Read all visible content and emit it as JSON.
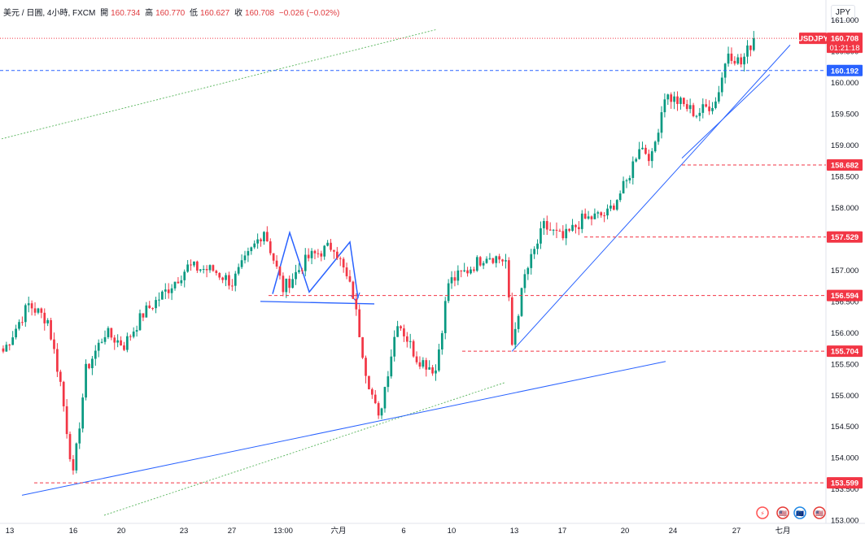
{
  "legend": {
    "symbol": "美元 / 日圓, 4小時, FXCM",
    "open_label": "開",
    "open": "160.734",
    "high_label": "高",
    "high": "160.770",
    "low_label": "低",
    "low": "160.627",
    "close_label": "收",
    "close": "160.708",
    "change": "−0.026 (−0.02%)"
  },
  "currency_button": "JPY",
  "chart_data": {
    "type": "candlestick",
    "title": "USDJPY",
    "ylim": [
      152.95,
      161.32
    ],
    "y_ticks": [
      "161.000",
      "160.500",
      "160.000",
      "159.500",
      "159.000",
      "158.500",
      "158.000",
      "157.500",
      "157.000",
      "156.500",
      "156.000",
      "155.500",
      "155.000",
      "154.500",
      "154.000",
      "153.500",
      "153.000"
    ],
    "x_ticks": [
      "13",
      "16",
      "20",
      "23",
      "27",
      "13:00",
      "六月",
      "6",
      "10",
      "13",
      "17",
      "20",
      "24",
      "27",
      "七月"
    ],
    "price_tag": {
      "symbol": "USDJPY",
      "value": "160.708",
      "countdown": "01:21:18",
      "price": 160.708
    },
    "levels": [
      {
        "label": "160.192",
        "price": 160.192,
        "color": "#2962ff"
      },
      {
        "label": "158.682",
        "price": 158.682,
        "color": "#f23645"
      },
      {
        "label": "157.529",
        "price": 157.529,
        "color": "#f23645"
      },
      {
        "label": "156.594",
        "price": 156.594,
        "color": "#f23645"
      },
      {
        "label": "155.704",
        "price": 155.704,
        "color": "#f23645"
      },
      {
        "label": "153.599",
        "price": 153.599,
        "color": "#f23645"
      }
    ],
    "series": [
      {
        "name": "USDJPY 4H close",
        "points": [
          {
            "bar": 0,
            "price": 155.7
          },
          {
            "bar": 8,
            "price": 156.45
          },
          {
            "bar": 14,
            "price": 156.2
          },
          {
            "bar": 18,
            "price": 155.2
          },
          {
            "bar": 22,
            "price": 153.7
          },
          {
            "bar": 26,
            "price": 155.4
          },
          {
            "bar": 32,
            "price": 156.0
          },
          {
            "bar": 38,
            "price": 155.8
          },
          {
            "bar": 44,
            "price": 156.3
          },
          {
            "bar": 50,
            "price": 156.6
          },
          {
            "bar": 58,
            "price": 157.05
          },
          {
            "bar": 66,
            "price": 157.0
          },
          {
            "bar": 72,
            "price": 156.8
          },
          {
            "bar": 82,
            "price": 157.65
          },
          {
            "bar": 88,
            "price": 156.7
          },
          {
            "bar": 96,
            "price": 157.2
          },
          {
            "bar": 104,
            "price": 157.4
          },
          {
            "bar": 110,
            "price": 156.6
          },
          {
            "bar": 114,
            "price": 155.4
          },
          {
            "bar": 118,
            "price": 154.6
          },
          {
            "bar": 124,
            "price": 156.2
          },
          {
            "bar": 130,
            "price": 155.6
          },
          {
            "bar": 136,
            "price": 155.4
          },
          {
            "bar": 140,
            "price": 156.8
          },
          {
            "bar": 146,
            "price": 157.0
          },
          {
            "bar": 152,
            "price": 157.25
          },
          {
            "bar": 158,
            "price": 157.15
          },
          {
            "bar": 160,
            "price": 155.8
          },
          {
            "bar": 164,
            "price": 156.9
          },
          {
            "bar": 170,
            "price": 157.7
          },
          {
            "bar": 176,
            "price": 157.5
          },
          {
            "bar": 182,
            "price": 157.8
          },
          {
            "bar": 190,
            "price": 157.9
          },
          {
            "bar": 196,
            "price": 158.4
          },
          {
            "bar": 200,
            "price": 159.0
          },
          {
            "bar": 204,
            "price": 158.8
          },
          {
            "bar": 208,
            "price": 159.8
          },
          {
            "bar": 212,
            "price": 159.7
          },
          {
            "bar": 218,
            "price": 159.5
          },
          {
            "bar": 224,
            "price": 159.7
          },
          {
            "bar": 228,
            "price": 160.5
          },
          {
            "bar": 232,
            "price": 160.3
          },
          {
            "bar": 236,
            "price": 160.708
          }
        ]
      }
    ]
  },
  "event_badges": [
    "⚡",
    "🇺🇸",
    "🇪🇺",
    "🇺🇸"
  ]
}
